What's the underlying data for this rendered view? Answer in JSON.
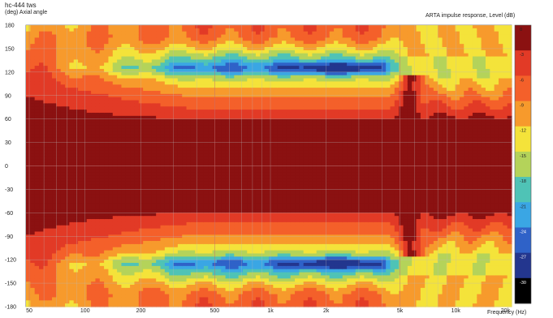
{
  "title": "hc-444 tws",
  "axis_unit_label": "(deg)  Axial angle",
  "right_title": "ARTA impulse response, Level  (dB)",
  "xlabel": "Frequency  (Hz)",
  "chart_data": {
    "type": "heatmap",
    "title": "hc-444 tws",
    "xlabel": "Frequency  (Hz)",
    "ylabel": "(deg)  Axial angle",
    "colorbar_label": "ARTA impulse response, Level  (dB)",
    "x_scale": "log",
    "xlim": [
      48,
      20000
    ],
    "ylim": [
      -180,
      180
    ],
    "x_ticks": [
      {
        "v": 50,
        "label": "50"
      },
      {
        "v": 100,
        "label": "100"
      },
      {
        "v": 200,
        "label": "200"
      },
      {
        "v": 500,
        "label": "500"
      },
      {
        "v": 1000,
        "label": "1k"
      },
      {
        "v": 2000,
        "label": "2k"
      },
      {
        "v": 5000,
        "label": "5k"
      },
      {
        "v": 10000,
        "label": "10k"
      },
      {
        "v": 20000,
        "label": "20k"
      }
    ],
    "y_ticks": [
      180,
      150,
      120,
      90,
      60,
      30,
      0,
      -30,
      -60,
      -90,
      -120,
      -150,
      -180
    ],
    "grid": true,
    "colorbar": [
      {
        "label": "0",
        "color": "#8b1111"
      },
      {
        "label": "-3",
        "color": "#e23a26"
      },
      {
        "label": "-6",
        "color": "#f4602a"
      },
      {
        "label": "-9",
        "color": "#f79a2c"
      },
      {
        "label": "-12",
        "color": "#f4e33a"
      },
      {
        "label": "-15",
        "color": "#b4d35a"
      },
      {
        "label": "-18",
        "color": "#4fc3b6"
      },
      {
        "label": "-21",
        "color": "#3aa6e4"
      },
      {
        "label": "-24",
        "color": "#2f62c8"
      },
      {
        "label": "-27",
        "color": "#23368e"
      },
      {
        "label": "-30",
        "color": "#000000"
      }
    ],
    "level_profile": {
      "angle": [
        0,
        30,
        50,
        62,
        75,
        90,
        105,
        115,
        120,
        125,
        135,
        150,
        165,
        180
      ],
      "level_db_at_1k": [
        0,
        -0.5,
        -1.5,
        -3.5,
        -6.5,
        -9.5,
        -13.5,
        -17.5,
        -22.5,
        -25.5,
        -20,
        -13,
        -8,
        -7
      ]
    },
    "low_frequency_level_db_at_90deg": -3,
    "deep_null": {
      "angle": 125,
      "freq_range": [
        1300,
        4000
      ],
      "level_db": -30
    },
    "lobe_5k_6k": {
      "freq_range": [
        5000,
        6500
      ],
      "reaches_angle": 117
    }
  }
}
